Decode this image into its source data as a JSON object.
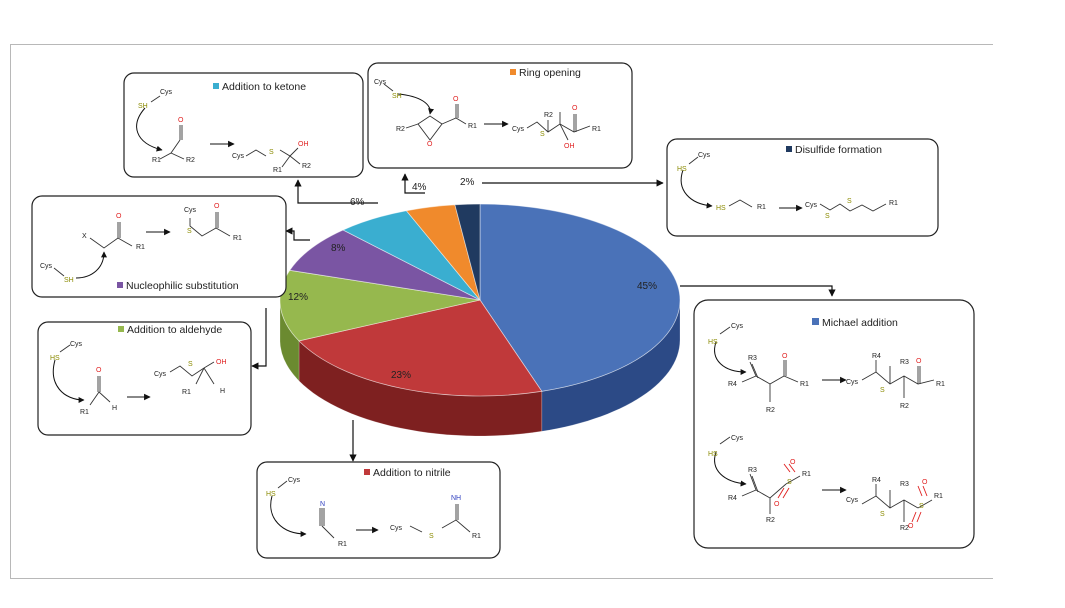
{
  "chart_data": {
    "type": "pie",
    "slices": [
      {
        "label": "Michael addition",
        "value": 45,
        "pct_label": "45%",
        "color": "#4a72b8",
        "side": "#2c4a86"
      },
      {
        "label": "Addition to nitrile",
        "value": 23,
        "pct_label": "23%",
        "color": "#c0393a",
        "side": "#7e2020"
      },
      {
        "label": "Addition to aldehyde",
        "value": 12,
        "pct_label": "12%",
        "color": "#96b84e",
        "side": "#6b8a30"
      },
      {
        "label": "Nucleophilic substitution",
        "value": 8,
        "pct_label": "8%",
        "color": "#7a55a3",
        "side": "#523575"
      },
      {
        "label": "Addition to ketone",
        "value": 6,
        "pct_label": "6%",
        "color": "#3aaed0",
        "side": "#2480a0"
      },
      {
        "label": "Ring opening",
        "value": 4,
        "pct_label": "4%",
        "color": "#f08a2c",
        "side": "#b8621a"
      },
      {
        "label": "Disulfide formation",
        "value": 2,
        "pct_label": "2%",
        "color": "#203a60",
        "side": "#142540"
      }
    ]
  },
  "schemes": {
    "ketone": {
      "title": "Addition to ketone",
      "cys": "Cys",
      "sh": "SH",
      "o": "O",
      "r1": "R1",
      "r2": "R2",
      "p_cys": "Cys",
      "p_s": "S",
      "p_oh": "OH",
      "p_r1": "R1",
      "p_r2": "R2"
    },
    "ring": {
      "title": "Ring opening",
      "cys": "Cys",
      "sh": "SH",
      "r2": "R2",
      "o_ep": "O",
      "o": "O",
      "r1": "R1",
      "p_cys": "Cys",
      "p_s": "S",
      "p_r2": "R2",
      "p_o": "O",
      "p_r1": "R1",
      "p_oh": "OH"
    },
    "disulfide": {
      "title": "Disulfide formation",
      "cys": "Cys",
      "hs": "HS",
      "hs2": "HS",
      "r1": "R1",
      "p_cys": "Cys",
      "p_s1": "S",
      "p_s2": "S",
      "p_r1": "R1"
    },
    "nucleo": {
      "title": "Nucleophilic substitution",
      "x": "X",
      "o": "O",
      "r1": "R1",
      "cys": "Cys",
      "sh": "SH",
      "p_cys": "Cys",
      "p_s": "S",
      "p_o": "O",
      "p_r1": "R1"
    },
    "aldehyde": {
      "title": "Addition to aldehyde",
      "cys": "Cys",
      "hs": "HS",
      "o": "O",
      "r1": "R1",
      "h": "H",
      "p_cys": "Cys",
      "p_s": "S",
      "p_oh": "OH",
      "p_r1": "R1",
      "p_h": "H"
    },
    "nitrile": {
      "title": "Addition to nitrile",
      "cys": "Cys",
      "hs": "HS",
      "n": "N",
      "r1": "R1",
      "p_cys": "Cys",
      "p_s": "S",
      "p_nh": "NH",
      "p_r1": "R1"
    },
    "michael": {
      "title": "Michael addition",
      "cys": "Cys",
      "hs": "HS",
      "r3": "R3",
      "r4": "R4",
      "r2": "R2",
      "o": "O",
      "r1": "R1",
      "p_cys": "Cys",
      "p_s": "S",
      "p_r4": "R4",
      "p_r3": "R3",
      "p_o": "O",
      "p_r1": "R1",
      "p_r2": "R2",
      "cys2": "Cys",
      "hs2": "HS",
      "r3b": "R3",
      "r4b": "R4",
      "r2b": "R2",
      "s_sulf": "S",
      "o1": "O",
      "o2": "O",
      "r1b": "R1",
      "p2_cys": "Cys",
      "p2_s": "S",
      "p2_r4": "R4",
      "p2_r3": "R3",
      "p2_ss": "S",
      "p2_o1": "O",
      "p2_o2": "O",
      "p2_r1": "R1",
      "p2_r2": "R2"
    }
  }
}
